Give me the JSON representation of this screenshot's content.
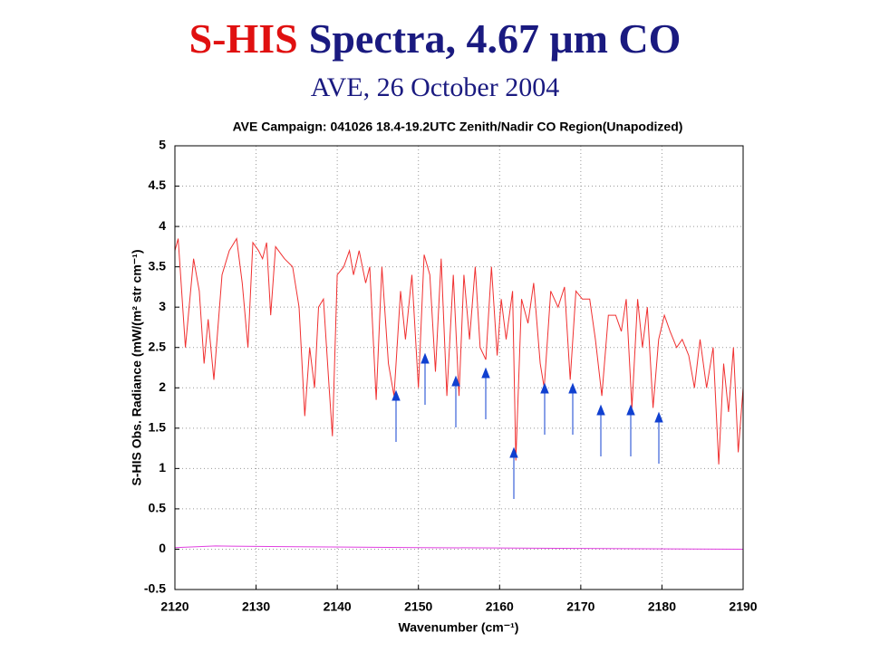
{
  "slide": {
    "title_highlight": "S-HIS",
    "title_rest": "Spectra, 4.67 μm CO",
    "subtitle": "AVE, 26 October 2004"
  },
  "chart_data": {
    "type": "line",
    "title": "AVE Campaign: 041026  18.4-19.2UTC Zenith/Nadir CO Region(Unapodized)",
    "xlabel": "Wavenumber (cm⁻¹)",
    "ylabel": "S-HIS Obs. Radiance (mW/(m² str cm⁻¹)",
    "xlim": [
      2120,
      2190
    ],
    "xticks": [
      2120,
      2130,
      2140,
      2150,
      2160,
      2170,
      2180,
      2190
    ],
    "ylim": [
      -0.5,
      5
    ],
    "yticks": [
      -0.5,
      0,
      0.5,
      1,
      1.5,
      2,
      2.5,
      3,
      3.5,
      4,
      4.5,
      5
    ],
    "grid": true,
    "series": [
      {
        "color": "#f03030",
        "x": [
          2120,
          2120.4,
          2121.3,
          2122.3,
          2123,
          2123.6,
          2124.1,
          2124.8,
          2125.8,
          2126.7,
          2127.6,
          2128.3,
          2129,
          2129.6,
          2130.3,
          2130.8,
          2131.3,
          2131.8,
          2132.4,
          2133.5,
          2134.5,
          2135.3,
          2136,
          2136.6,
          2137.2,
          2137.7,
          2138.3,
          2139,
          2139.4,
          2140,
          2140.8,
          2141.5,
          2142,
          2142.7,
          2143.5,
          2144,
          2144.8,
          2145.5,
          2146.3,
          2147,
          2147.8,
          2148.4,
          2149.2,
          2150,
          2150.7,
          2151.4,
          2152.1,
          2152.8,
          2153.5,
          2154.3,
          2155,
          2155.6,
          2156.3,
          2157,
          2157.6,
          2158.3,
          2159,
          2159.7,
          2160.2,
          2160.8,
          2161.6,
          2162,
          2162.7,
          2163.5,
          2164.2,
          2165,
          2165.5,
          2166.3,
          2167.2,
          2168,
          2168.7,
          2169.4,
          2170.2,
          2171.1,
          2171.8,
          2172.6,
          2173.4,
          2174.3,
          2175,
          2175.6,
          2176.3,
          2177,
          2177.6,
          2178.2,
          2178.9,
          2179.6,
          2180.3,
          2181,
          2181.8,
          2182.5,
          2183.3,
          2184,
          2184.7,
          2185.5,
          2186.3,
          2187,
          2187.6,
          2188.2,
          2188.8,
          2189.4,
          2190
        ],
        "values": [
          3.7,
          3.85,
          2.5,
          3.6,
          3.2,
          2.3,
          2.85,
          2.1,
          3.4,
          3.7,
          3.85,
          3.3,
          2.5,
          3.8,
          3.7,
          3.6,
          3.8,
          2.9,
          3.75,
          3.6,
          3.5,
          3.0,
          1.65,
          2.5,
          2.0,
          3.0,
          3.1,
          2.0,
          1.4,
          3.4,
          3.5,
          3.7,
          3.4,
          3.7,
          3.3,
          3.5,
          1.85,
          3.5,
          2.3,
          1.9,
          3.2,
          2.6,
          3.4,
          2.0,
          3.65,
          3.4,
          2.2,
          3.6,
          1.9,
          3.4,
          1.9,
          3.4,
          2.6,
          3.5,
          2.5,
          2.35,
          3.5,
          2.4,
          3.1,
          2.6,
          3.2,
          1.1,
          3.1,
          2.8,
          3.3,
          2.3,
          2.0,
          3.2,
          3.0,
          3.25,
          2.1,
          3.2,
          3.1,
          3.1,
          2.6,
          1.9,
          2.9,
          2.9,
          2.7,
          3.1,
          1.75,
          3.1,
          2.5,
          3.0,
          1.75,
          2.6,
          2.9,
          2.7,
          2.5,
          2.6,
          2.4,
          2.0,
          2.6,
          2.0,
          2.5,
          1.05,
          2.3,
          1.7,
          2.5,
          1.2,
          2.0
        ]
      },
      {
        "color": "#e040e0",
        "x": [
          2120,
          2125,
          2135,
          2150,
          2170,
          2190
        ],
        "values": [
          0.02,
          0.04,
          0.03,
          0.02,
          0.01,
          0.0
        ]
      }
    ]
  }
}
